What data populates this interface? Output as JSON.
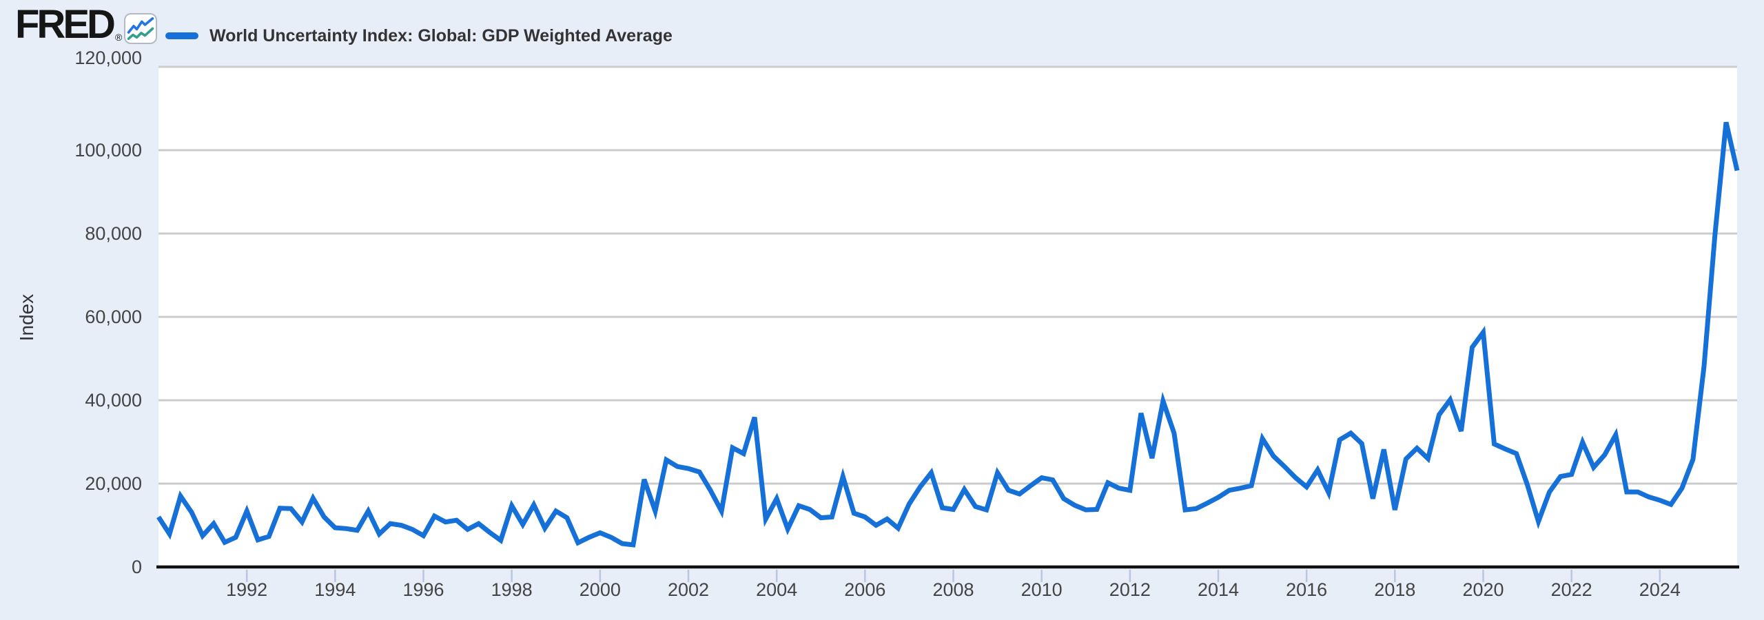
{
  "header": {
    "brand": "FRED",
    "registered_mark": "®",
    "logo_icon": "fred-line-chart-icon",
    "legend": {
      "swatch_color": "#1570d8",
      "label": "World Uncertainty Index: Global: GDP Weighted Average"
    }
  },
  "y_axis": {
    "title": "Index",
    "tick_labels": [
      "120,000",
      "100,000",
      "80,000",
      "60,000",
      "40,000",
      "20,000",
      "0"
    ],
    "tick_values": [
      120000,
      100000,
      80000,
      60000,
      40000,
      20000,
      0
    ]
  },
  "x_axis": {
    "tick_labels": [
      "1992",
      "1994",
      "1996",
      "1998",
      "2000",
      "2002",
      "2004",
      "2006",
      "2008",
      "2010",
      "2012",
      "2014",
      "2016",
      "2018",
      "2020",
      "2022",
      "2024"
    ],
    "tick_years": [
      1992,
      1994,
      1996,
      1998,
      2000,
      2002,
      2004,
      2006,
      2008,
      2010,
      2012,
      2014,
      2016,
      2018,
      2020,
      2022,
      2024
    ]
  },
  "chart_data": {
    "type": "line",
    "title": "World Uncertainty Index: Global: GDP Weighted Average",
    "xlabel": "",
    "ylabel": "Index",
    "frequency": "quarterly",
    "x_start": "1990 Q1",
    "x_end": "2025 Q4",
    "xlim": [
      1990,
      2025.75
    ],
    "ylim": [
      0,
      120000
    ],
    "grid": "horizontal",
    "legend_position": "top-left",
    "series": [
      {
        "name": "World Uncertainty Index: Global: GDP Weighted Average",
        "color": "#1570d8",
        "values": [
          12000,
          7900,
          17000,
          13100,
          7500,
          10400,
          5900,
          7100,
          13400,
          6500,
          7300,
          14100,
          14000,
          10800,
          16500,
          12000,
          9400,
          9200,
          8800,
          13400,
          7900,
          10400,
          10000,
          9000,
          7500,
          12200,
          10800,
          11200,
          9000,
          10400,
          8300,
          6400,
          14700,
          10200,
          14900,
          9300,
          13400,
          11800,
          5800,
          7100,
          8200,
          7100,
          5600,
          5300,
          21000,
          13400,
          25700,
          24100,
          23600,
          22800,
          18400,
          13400,
          28600,
          27200,
          35900,
          11500,
          16400,
          9100,
          14700,
          13800,
          11800,
          12000,
          21700,
          12900,
          12000,
          10000,
          11500,
          9300,
          15100,
          19200,
          22600,
          14200,
          13800,
          18600,
          14500,
          13700,
          22600,
          18400,
          17500,
          19500,
          21400,
          20900,
          16400,
          14800,
          13700,
          13800,
          20200,
          18900,
          18400,
          36900,
          26100,
          39800,
          32100,
          13700,
          14000,
          15300,
          16700,
          18400,
          18900,
          19500,
          30800,
          26600,
          24100,
          21400,
          19200,
          23300,
          17800,
          30500,
          32100,
          29600,
          16400,
          28200,
          13700,
          25900,
          28500,
          26000,
          36500,
          40100,
          32600,
          52700,
          56300,
          29500,
          28300,
          27200,
          19700,
          10900,
          18000,
          21700,
          22200,
          29900,
          23900,
          26900,
          31700,
          18000,
          18000,
          16800,
          16000,
          15000,
          18900,
          25800,
          48000,
          80000,
          106700,
          95100
        ]
      }
    ]
  },
  "colors": {
    "page_background": "#e8eef7",
    "plot_background": "#ffffff",
    "gridline": "#cccccc",
    "axis_line": "#111111",
    "tick_mark": "#b9c6e3",
    "tick_label": "#444444",
    "legend_text": "#333333",
    "logo_text": "#161616",
    "icon_line_blue": "#2474e4",
    "icon_line_teal": "#359e8d",
    "series_line": "#1570d8"
  }
}
